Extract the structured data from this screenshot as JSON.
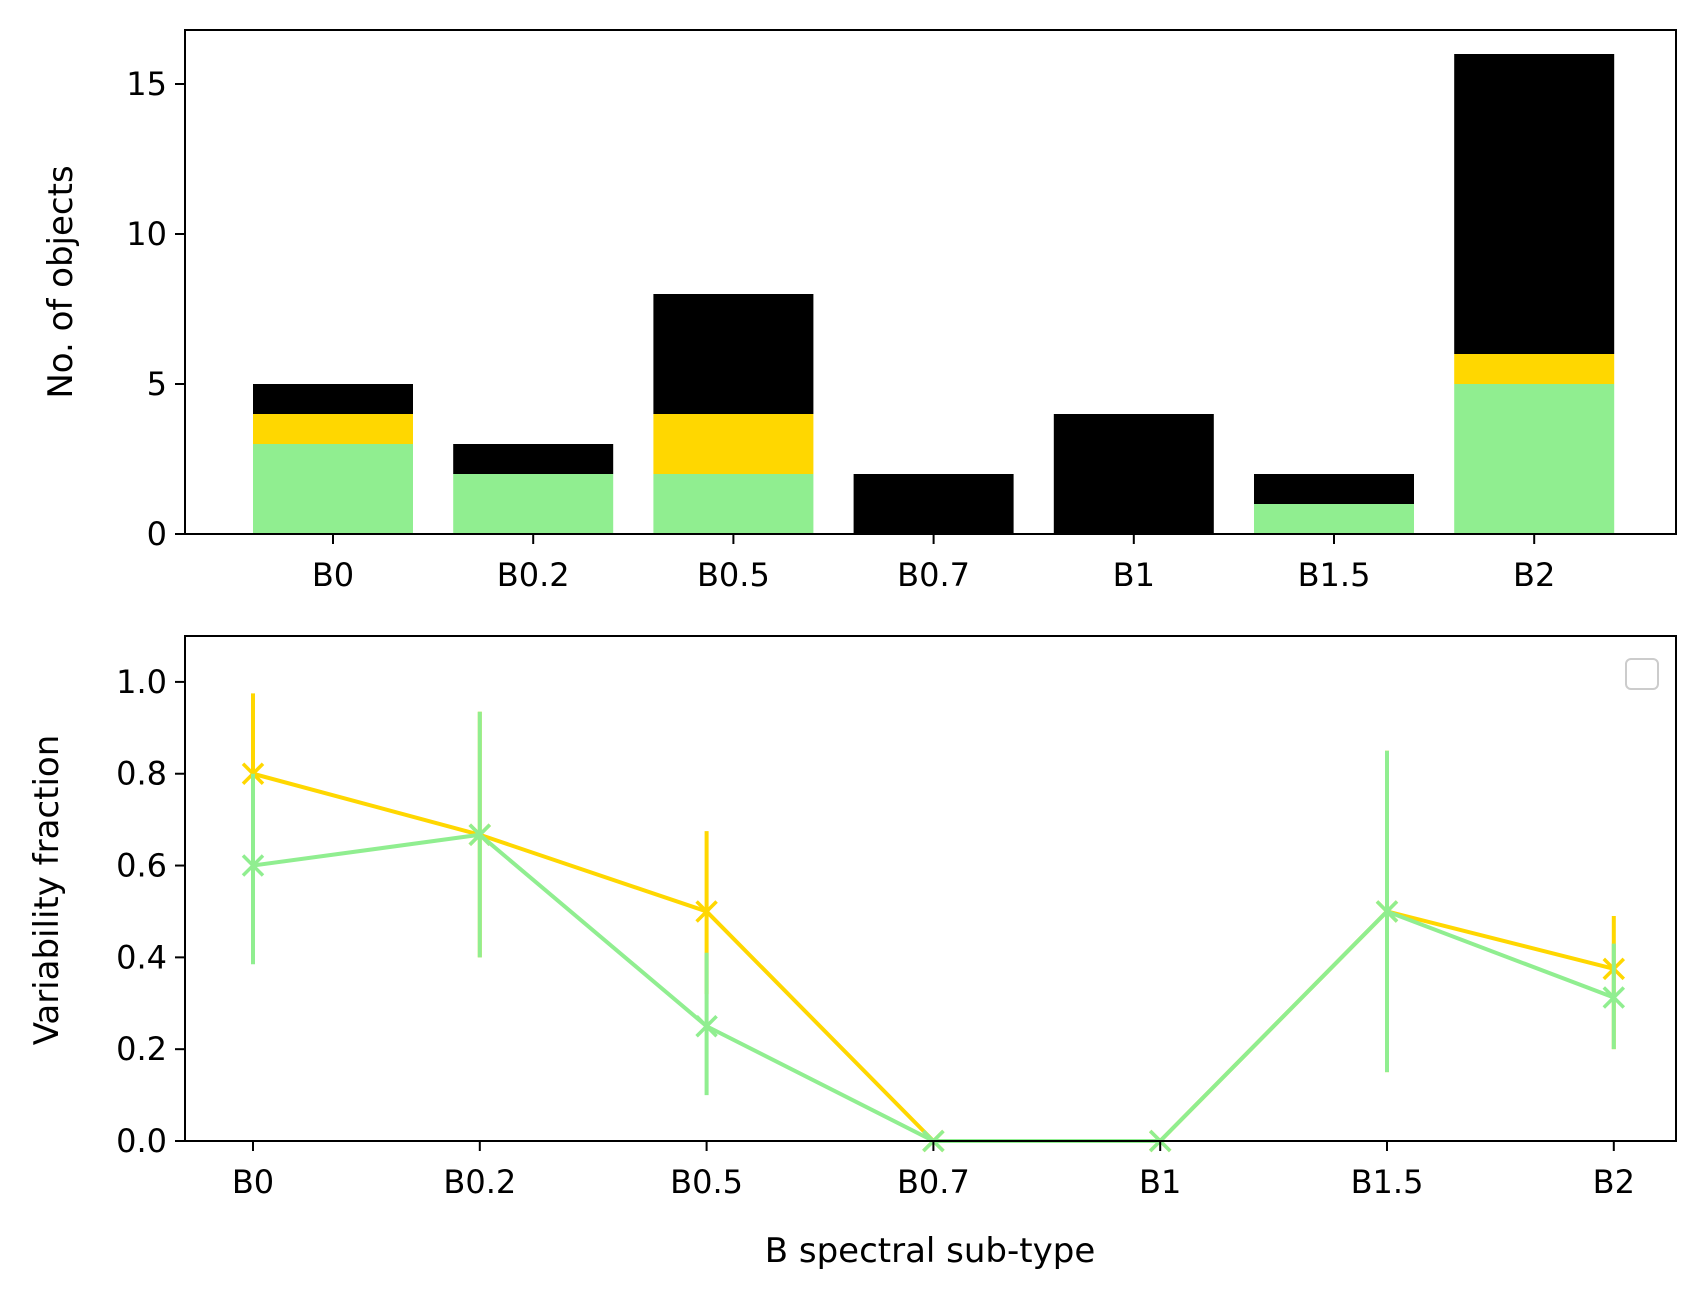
{
  "chart_data": [
    {
      "type": "bar",
      "stacked": true,
      "categories": [
        "B0",
        "B0.2",
        "B0.5",
        "B0.7",
        "B1",
        "B1.5",
        "B2"
      ],
      "ylabel": "No. of objects",
      "xlabel": "",
      "ylim": [
        0,
        16.8
      ],
      "yticks": [
        0,
        5,
        10,
        15
      ],
      "grid": false,
      "series": [
        {
          "color": "#90ee90",
          "values": [
            3,
            2,
            2,
            0,
            0,
            1,
            5
          ]
        },
        {
          "color": "#ffd700",
          "values": [
            1,
            0,
            2,
            0,
            0,
            0,
            1
          ]
        },
        {
          "color": "#000000",
          "values": [
            1,
            1,
            4,
            2,
            4,
            1,
            10
          ]
        }
      ]
    },
    {
      "type": "line",
      "categories": [
        "B0",
        "B0.2",
        "B0.5",
        "B0.7",
        "B1",
        "B1.5",
        "B2"
      ],
      "ylabel": "Variability fraction",
      "xlabel": "B spectral sub-type",
      "ylim": [
        0,
        1.1
      ],
      "yticks": [
        "0.0",
        "0.2",
        "0.4",
        "0.6",
        "0.8",
        "1.0"
      ],
      "grid": false,
      "legend": "upper right (empty)",
      "marker": "x",
      "series": [
        {
          "color": "#ffd700",
          "values": [
            0.8,
            0.667,
            0.5,
            0.0,
            0.0,
            0.5,
            0.375
          ],
          "err_low": [
            0.8,
            0.4,
            0.32,
            0.0,
            0.0,
            0.15,
            0.2
          ],
          "err_high": [
            0.975,
            0.935,
            0.675,
            0.0,
            0.0,
            0.85,
            0.49
          ]
        },
        {
          "color": "#90ee90",
          "values": [
            0.6,
            0.667,
            0.25,
            0.0,
            0.0,
            0.5,
            0.3125
          ],
          "err_low": [
            0.385,
            0.4,
            0.1,
            0.0,
            0.0,
            0.15,
            0.2
          ],
          "err_high": [
            0.8,
            0.935,
            0.41,
            0.0,
            0.0,
            0.85,
            0.43
          ]
        }
      ]
    }
  ]
}
